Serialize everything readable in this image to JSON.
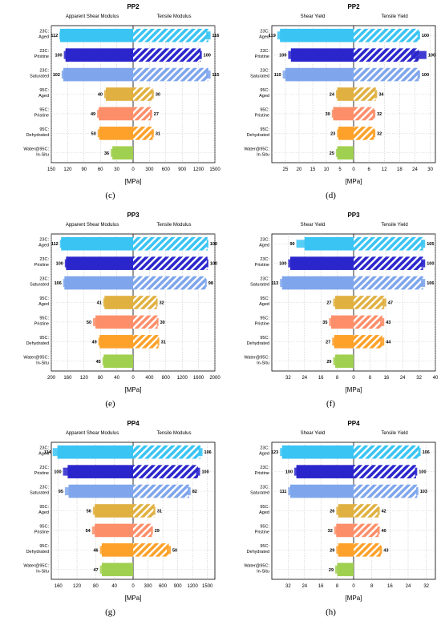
{
  "colors": {
    "Aged": "#3ac4f3",
    "Pristine": "#2b26cc",
    "Saturated": "#7fa6ec",
    "95Aged": "#e0b040",
    "95Pristine": "#fc8f6a",
    "95Dehydrated": "#fda12a",
    "InSitu": "#a0d050"
  },
  "chart_data": [
    {
      "id": "c",
      "type": "bar",
      "title": "PP2",
      "caption": "(c)",
      "xlabel": "[MPa]",
      "left_title": "Apparent Shear Modulus",
      "right_title": "Tensile Modulus",
      "categories": [
        "23C:\nAged",
        "23C:\nPristine",
        "23C:\nSaturated",
        "95C:\nAged",
        "95C:\nPristine",
        "95C:\nDehydrated",
        "Water@95C:\nIn-Situ"
      ],
      "left_max": 150,
      "right_max": 1500,
      "left_ticks": [
        150,
        120,
        90,
        60,
        30,
        0
      ],
      "right_ticks": [
        0,
        300,
        600,
        900,
        1200,
        1500
      ],
      "left_values": [
        134,
        124,
        128,
        50,
        63,
        62,
        38
      ],
      "left_errors": [
        1,
        3,
        3,
        3,
        3,
        3,
        3
      ],
      "right_values": [
        1380,
        1240,
        1380,
        360,
        330,
        360,
        0
      ],
      "right_errors": [
        40,
        20,
        40,
        20,
        20,
        20,
        0
      ],
      "left_labels": [
        "112",
        "100",
        "102",
        "40",
        "49",
        "50",
        "36"
      ],
      "right_labels": [
        "116",
        "100",
        "115",
        "30",
        "27",
        "31",
        ""
      ]
    },
    {
      "id": "d",
      "type": "bar",
      "title": "PP2",
      "caption": "(d)",
      "xlabel": "[MPa]",
      "left_title": "Shear Yield",
      "right_title": "Tensile Yield",
      "categories": [
        "23C:\nAged",
        "23C:\nPristine",
        "23C:\nSaturated",
        "95C:\nAged",
        "95C:\nPristine",
        "95C:\nDehydrated",
        "Water@95C:\nIn-Situ"
      ],
      "left_max": 30,
      "right_max": 32,
      "left_ticks": [
        25,
        20,
        15,
        10,
        5,
        0
      ],
      "right_ticks": [
        0,
        6,
        12,
        18,
        24,
        30
      ],
      "left_values": [
        27,
        23,
        25,
        6,
        7.5,
        5.6,
        6
      ],
      "left_errors": [
        1,
        1,
        1,
        0.5,
        0.5,
        0.5,
        0.5
      ],
      "right_values": [
        25.5,
        25.5,
        25.5,
        8.7,
        8,
        8,
        0
      ],
      "right_errors": [
        0.5,
        3,
        0.5,
        0.5,
        0.5,
        0.5,
        0
      ],
      "left_labels": [
        "119",
        "100",
        "110",
        "24",
        "30",
        "23",
        "25"
      ],
      "right_labels": [
        "100",
        "100",
        "100",
        "34",
        "32",
        "32",
        ""
      ]
    },
    {
      "id": "e",
      "type": "bar",
      "title": "PP3",
      "caption": "(e)",
      "xlabel": "[MPa]",
      "left_title": "Apparent Shear Modulus",
      "right_title": "Tensile Modulus",
      "categories": [
        "23C:\nAged",
        "23C:\nPristine",
        "23C:\nSaturated",
        "95C:\nAged",
        "95C:\nPristine",
        "95C:\nDehydrated",
        "Water@95C:\nIn-Situ"
      ],
      "left_max": 200,
      "right_max": 2000,
      "left_ticks": [
        200,
        160,
        120,
        80,
        40,
        0
      ],
      "right_ticks": [
        0,
        400,
        800,
        1200,
        1600,
        2000
      ],
      "left_values": [
        176,
        164,
        168,
        70,
        92,
        82,
        72
      ],
      "left_errors": [
        3,
        3,
        3,
        3,
        6,
        3,
        3
      ],
      "right_values": [
        1820,
        1820,
        1780,
        580,
        600,
        620,
        0
      ],
      "right_errors": [
        20,
        20,
        20,
        20,
        20,
        20,
        0
      ],
      "left_labels": [
        "112",
        "100",
        "106",
        "41",
        "50",
        "49",
        "45"
      ],
      "right_labels": [
        "100",
        "100",
        "98",
        "32",
        "30",
        "31",
        ""
      ]
    },
    {
      "id": "f",
      "type": "bar",
      "title": "PP3",
      "caption": "(f)",
      "xlabel": "[MPa]",
      "left_title": "Shear Yield",
      "right_title": "Tensile Yield",
      "categories": [
        "23C:\nAged",
        "23C:\nPristine",
        "23C:\nSaturated",
        "95C:\nAged",
        "95C:\nPristine",
        "95C:\nDehydrated",
        "Water@95C:\nIn-Situ"
      ],
      "left_max": 40,
      "right_max": 40,
      "left_ticks": [
        32,
        24,
        16,
        8,
        0
      ],
      "right_ticks": [
        0,
        8,
        16,
        24,
        32,
        40
      ],
      "left_values": [
        24,
        31,
        35,
        9,
        11,
        9.5,
        9
      ],
      "left_errors": [
        4,
        1,
        1,
        1,
        1,
        1,
        1
      ],
      "right_values": [
        34,
        34,
        34,
        15,
        14,
        14,
        0
      ],
      "right_errors": [
        1,
        1,
        1,
        1,
        1,
        1,
        0
      ],
      "left_labels": [
        "90",
        "100",
        "113",
        "27",
        "35",
        "27",
        "29"
      ],
      "right_labels": [
        "105",
        "100",
        "106",
        "47",
        "43",
        "44",
        ""
      ]
    },
    {
      "id": "g",
      "type": "bar",
      "title": "PP4",
      "caption": "(g)",
      "xlabel": "[MPa]",
      "left_title": "Apparent Shear Modulus",
      "right_title": "Tensile Modulus",
      "categories": [
        "23C:\nAged",
        "23C:\nPristine",
        "23C:\nSaturated",
        "95C:\nAged",
        "95C:\nPristine",
        "95C:\nDehydrated",
        "Water@95C:\nIn-Situ"
      ],
      "left_max": 175,
      "right_max": 1650,
      "left_ticks": [
        160,
        120,
        80,
        40,
        0
      ],
      "right_ticks": [
        0,
        300,
        600,
        900,
        1200,
        1500
      ],
      "left_values": [
        162,
        140,
        138,
        82,
        82,
        67,
        67
      ],
      "left_errors": [
        10,
        10,
        8,
        4,
        6,
        4,
        4
      ],
      "right_values": [
        1360,
        1310,
        1130,
        430,
        380,
        720,
        0
      ],
      "right_errors": [
        40,
        40,
        30,
        20,
        20,
        40,
        0
      ],
      "left_labels": [
        "114",
        "100",
        "95",
        "56",
        "54",
        "46",
        "47"
      ],
      "right_labels": [
        "106",
        "100",
        "82",
        "31",
        "29",
        "50",
        ""
      ]
    },
    {
      "id": "h",
      "type": "bar",
      "title": "PP4",
      "caption": "(h)",
      "xlabel": "[MPa]",
      "left_title": "Shear Yield",
      "right_title": "Tensile Yield",
      "categories": [
        "23C:\nAged",
        "23C:\nPristine",
        "23C:\nSaturated",
        "95C:\nAged",
        "95C:\nPristine",
        "95C:\nDehydrated",
        "Water@95C:\nIn-Situ"
      ],
      "left_max": 40,
      "right_max": 36,
      "left_ticks": [
        32,
        24,
        16,
        8,
        0
      ],
      "right_ticks": [
        0,
        8,
        16,
        24,
        32
      ],
      "left_values": [
        35,
        28,
        31,
        7.5,
        8.5,
        7.5,
        8
      ],
      "left_errors": [
        1,
        1,
        1,
        1,
        1,
        1,
        1
      ],
      "right_values": [
        29,
        27.5,
        28,
        11,
        11,
        12,
        0
      ],
      "right_errors": [
        0.5,
        0.5,
        0.5,
        0.5,
        0.5,
        0.5,
        0
      ],
      "left_labels": [
        "123",
        "100",
        "111",
        "26",
        "32",
        "29",
        "29"
      ],
      "right_labels": [
        "106",
        "100",
        "103",
        "42",
        "40",
        "43",
        ""
      ]
    }
  ]
}
